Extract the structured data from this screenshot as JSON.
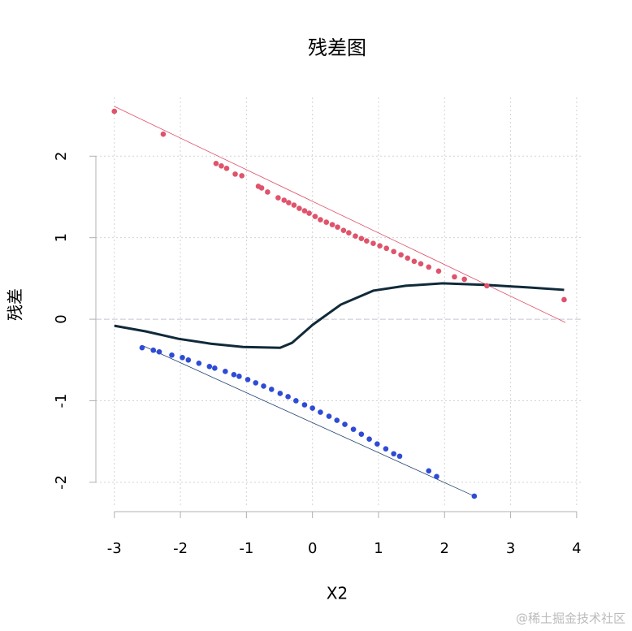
{
  "chart_data": {
    "type": "scatter",
    "title": "残差图",
    "xlabel": "X2",
    "ylabel": "残差",
    "watermark": "@稀土掘金技术社区",
    "xlim": [
      -3.28,
      4.1
    ],
    "ylim": [
      -2.31,
      2.72
    ],
    "xticks": [
      -3,
      -2,
      -1,
      0,
      1,
      2,
      3,
      4
    ],
    "yticks": [
      -2,
      -1,
      0,
      1,
      2
    ],
    "grid": true,
    "hline": 0,
    "series": [
      {
        "color": "#DF536B",
        "x": [
          -3.0,
          -2.26,
          -1.46,
          -1.38,
          -1.3,
          -1.17,
          -1.07,
          -0.82,
          -0.77,
          -0.68,
          -0.52,
          -0.43,
          -0.36,
          -0.28,
          -0.2,
          -0.12,
          -0.05,
          0.04,
          0.12,
          0.21,
          0.3,
          0.38,
          0.47,
          0.55,
          0.65,
          0.74,
          0.82,
          0.92,
          1.02,
          1.12,
          1.23,
          1.34,
          1.44,
          1.54,
          1.64,
          1.76,
          1.91,
          2.15,
          2.3,
          2.64,
          3.81
        ],
        "values": [
          2.55,
          2.27,
          1.91,
          1.88,
          1.85,
          1.78,
          1.76,
          1.63,
          1.61,
          1.56,
          1.49,
          1.46,
          1.43,
          1.4,
          1.36,
          1.33,
          1.3,
          1.26,
          1.22,
          1.19,
          1.16,
          1.13,
          1.09,
          1.06,
          1.02,
          0.99,
          0.96,
          0.93,
          0.9,
          0.87,
          0.83,
          0.79,
          0.75,
          0.71,
          0.68,
          0.64,
          0.59,
          0.52,
          0.49,
          0.41,
          0.24
        ]
      },
      {
        "color": "#2E4BD6",
        "x": [
          -2.58,
          -2.41,
          -2.32,
          -2.13,
          -1.97,
          -1.88,
          -1.72,
          -1.56,
          -1.48,
          -1.32,
          -1.19,
          -1.11,
          -0.98,
          -0.86,
          -0.74,
          -0.62,
          -0.49,
          -0.37,
          -0.25,
          -0.12,
          0.0,
          0.12,
          0.25,
          0.37,
          0.49,
          0.62,
          0.74,
          0.86,
          0.98,
          1.11,
          1.23,
          1.32,
          1.76,
          1.88,
          2.45
        ],
        "values": [
          -0.35,
          -0.38,
          -0.4,
          -0.44,
          -0.47,
          -0.5,
          -0.54,
          -0.58,
          -0.6,
          -0.64,
          -0.68,
          -0.7,
          -0.74,
          -0.78,
          -0.82,
          -0.86,
          -0.91,
          -0.95,
          -1.0,
          -1.05,
          -1.09,
          -1.14,
          -1.19,
          -1.24,
          -1.29,
          -1.35,
          -1.41,
          -1.47,
          -1.53,
          -1.59,
          -1.65,
          -1.68,
          -1.86,
          -1.93,
          -2.17
        ]
      }
    ],
    "lines": [
      {
        "color": "#DF536B",
        "width": 0.8,
        "x": [
          -3.0,
          3.83
        ],
        "values": [
          2.61,
          -0.04
        ]
      },
      {
        "color": "#1f3f6e",
        "width": 0.8,
        "x": [
          -2.58,
          2.45
        ],
        "values": [
          -0.32,
          -2.17
        ]
      },
      {
        "color": "#102a3a",
        "width": 3,
        "x": [
          -3.0,
          -2.52,
          -2.03,
          -1.54,
          -1.05,
          -0.49,
          -0.31,
          0.0,
          0.43,
          0.92,
          1.41,
          1.97,
          2.64,
          3.26,
          3.81
        ],
        "values": [
          -0.08,
          -0.15,
          -0.24,
          -0.3,
          -0.34,
          -0.35,
          -0.29,
          -0.07,
          0.18,
          0.35,
          0.41,
          0.44,
          0.42,
          0.39,
          0.36
        ]
      }
    ]
  }
}
